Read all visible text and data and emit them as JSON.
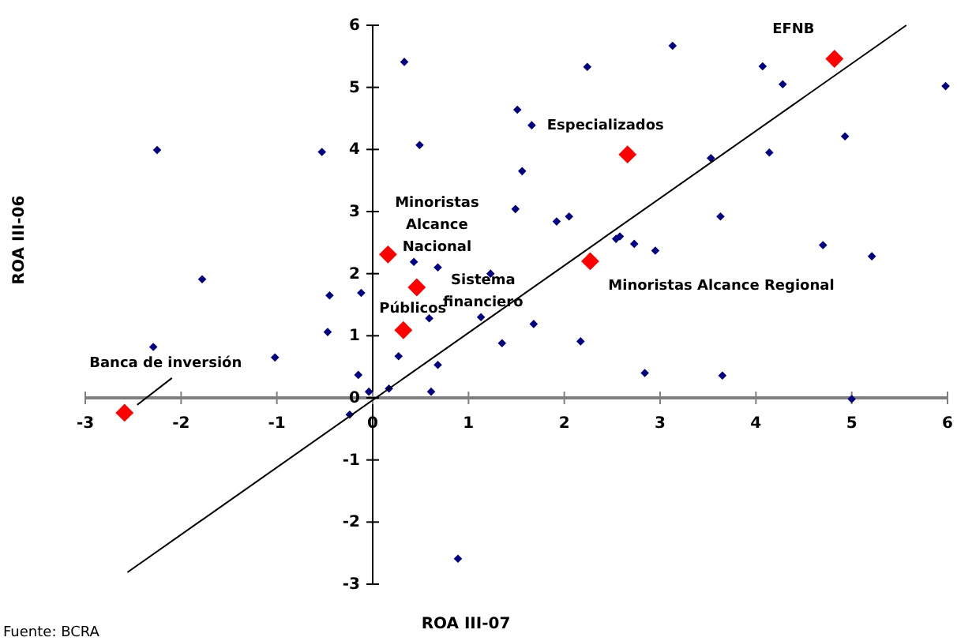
{
  "chart_data": {
    "type": "scatter",
    "xlabel": "ROA III-07",
    "ylabel": "ROA III-06",
    "xlim": [
      -3,
      6
    ],
    "ylim": [
      -3,
      6
    ],
    "xticks": [
      -3,
      -2,
      -1,
      0,
      1,
      2,
      3,
      4,
      5,
      6
    ],
    "yticks": [
      -3,
      -2,
      -1,
      0,
      1,
      2,
      3,
      4,
      5,
      6
    ],
    "grid": false,
    "marker": "diamond",
    "series": [
      {
        "type": "scatter",
        "color": "#000080",
        "x": [
          -2.25,
          -0.53,
          -1.78,
          -0.45,
          -0.12,
          -2.29,
          -0.47,
          -1.02,
          -0.15,
          -0.04,
          0.17,
          -0.24,
          0.33,
          2.24,
          1.51,
          1.66,
          0.49,
          1.56,
          1.49,
          1.92,
          2.05,
          2.54,
          2.58,
          2.73,
          2.95,
          0.43,
          0.68,
          1.23,
          0.59,
          1.13,
          1.68,
          1.35,
          2.17,
          0.27,
          0.68,
          2.84,
          0.61,
          3.13,
          4.07,
          4.28,
          5.98,
          4.93,
          3.53,
          4.14,
          3.63,
          4.7,
          5.21,
          3.65,
          5.0,
          0.89
        ],
        "values": [
          3.99,
          3.96,
          1.91,
          1.65,
          1.69,
          0.82,
          1.06,
          0.65,
          0.37,
          0.1,
          0.15,
          -0.27,
          5.41,
          5.33,
          4.64,
          4.39,
          4.07,
          3.65,
          3.04,
          2.84,
          2.92,
          2.56,
          2.6,
          2.48,
          2.37,
          2.19,
          2.1,
          2.0,
          1.28,
          1.3,
          1.19,
          0.88,
          0.91,
          0.67,
          0.53,
          0.4,
          0.1,
          5.67,
          5.34,
          5.05,
          5.02,
          4.21,
          3.86,
          3.95,
          2.92,
          2.46,
          2.28,
          0.36,
          -0.02,
          -2.59
        ]
      },
      {
        "type": "scatter",
        "color": "#ff0000",
        "x": [
          -2.59,
          0.16,
          0.46,
          0.32,
          2.27,
          2.66,
          4.82
        ],
        "values": [
          -0.24,
          2.31,
          1.78,
          1.09,
          2.2,
          3.92,
          5.46
        ]
      },
      {
        "type": "line",
        "color": "#000000",
        "marker": "none",
        "x": [
          -2.56,
          5.57
        ],
        "values": [
          -2.81,
          6
        ]
      }
    ],
    "annotations": [
      {
        "text": "Banca de inversión",
        "x": -2.59,
        "y": -0.24
      },
      {
        "text": "Minoristas\nAlcance\nNacional",
        "x": 0.16,
        "y": 2.31
      },
      {
        "text": "Sistema\nfinanciero",
        "x": 0.46,
        "y": 1.78
      },
      {
        "text": "Públicos",
        "x": 0.32,
        "y": 1.09
      },
      {
        "text": "Especializados",
        "x": 2.66,
        "y": 3.92
      },
      {
        "text": "Minoristas Alcance Regional",
        "x": 2.27,
        "y": 2.2
      },
      {
        "text": "EFNB",
        "x": 4.82,
        "y": 5.46
      },
      "Fuente: BCRA"
    ]
  }
}
